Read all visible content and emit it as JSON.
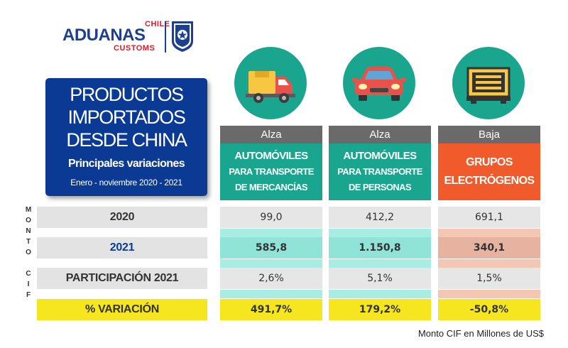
{
  "logo": {
    "top_word": "CHILE",
    "main_word": "ADUANAS",
    "bottom_word": "CUSTOMS",
    "shield_text": "ADUANAS CHILE",
    "colors": {
      "blue": "#1d3f8f",
      "red": "#d6202b"
    }
  },
  "title_card": {
    "line1": "PRODUCTOS",
    "line2": "IMPORTADOS",
    "line3": "DESDE CHINA",
    "subtitle": "Principales variaciones",
    "period": "Enero - noviembre 2020 - 2021"
  },
  "side_label": [
    "M",
    "O",
    "N",
    "T",
    "O",
    "",
    "C",
    "I",
    "F"
  ],
  "row_labels": {
    "y2020": "2020",
    "y2021": "2021",
    "share": "PARTICIPACIÓN 2021",
    "variation": "% VARIACIÓN"
  },
  "columns": [
    {
      "icon": "delivery-truck-icon",
      "trend": "Alza",
      "category_line1": "AUTOMÓVILES",
      "category_line2": "PARA TRANSPORTE",
      "category_line3": "DE MERCANCÍAS",
      "v2020": "99,0",
      "v2021": "585,8",
      "share": "2,6%",
      "variation": "491,7%"
    },
    {
      "icon": "car-icon",
      "trend": "Alza",
      "category_line1": "AUTOMÓVILES",
      "category_line2": "PARA TRANSPORTE",
      "category_line3": "DE PERSONAS",
      "v2020": "412,2",
      "v2021": "1.150,8",
      "share": "5,1%",
      "variation": "179,2%"
    },
    {
      "icon": "generator-icon",
      "trend": "Baja",
      "category_line1": "GRUPOS",
      "category_line2": "ELECTRÓGENOS",
      "category_line3": "",
      "v2020": "691,1",
      "v2021": "340,1",
      "share": "1,5%",
      "variation": "-50,8%"
    }
  ],
  "footnote": "Monto CIF en Millones de US$",
  "colors": {
    "title_blue": "#0b3a94",
    "teal": "#1aa58f",
    "orange": "#f15a2b",
    "trend_gray": "#6a6a6a",
    "row_gray": "#e3e3e3",
    "variation_yellow": "#f5e61f",
    "teal_light": "#8fe3d7",
    "orange_light": "#f2b69f"
  }
}
